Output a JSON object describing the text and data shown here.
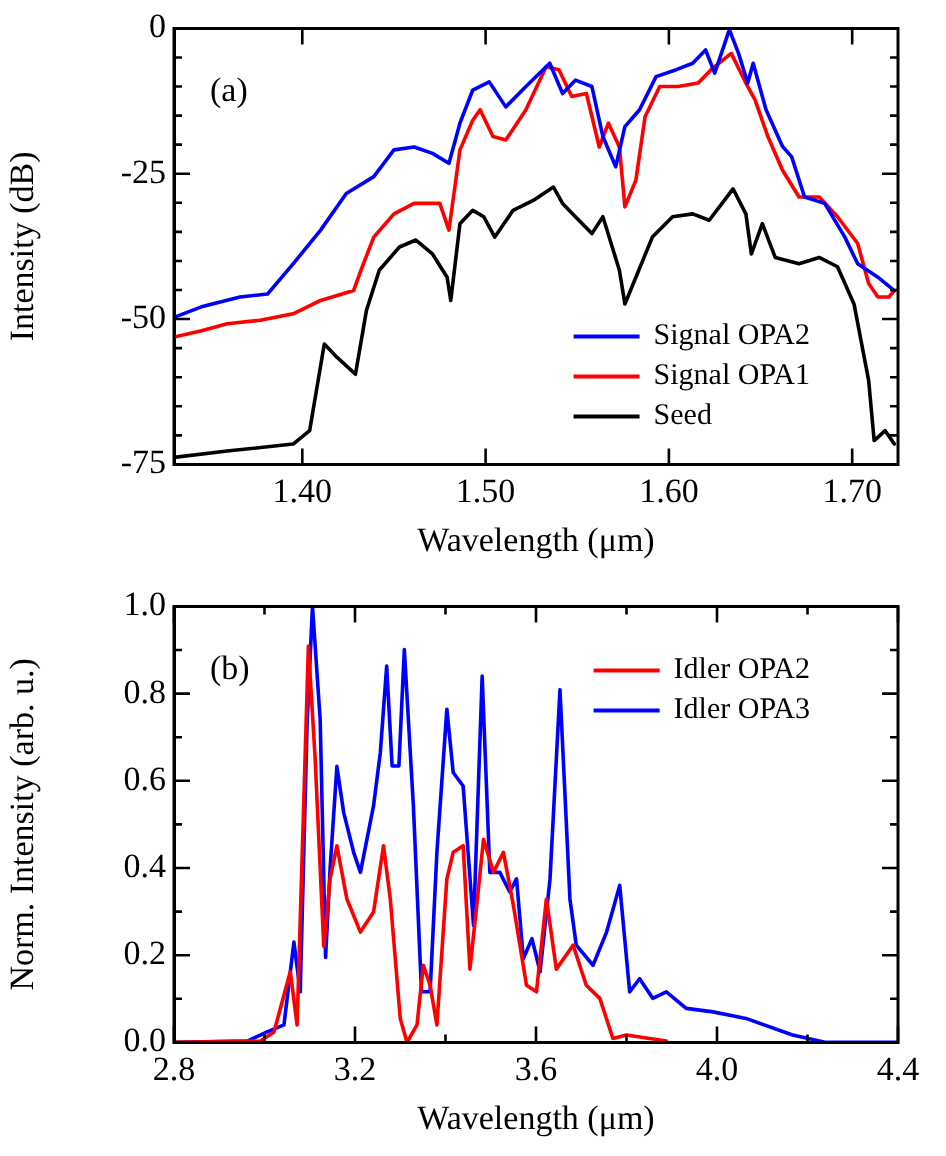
{
  "chart_data": [
    {
      "type": "line",
      "xlabel": "Wavelength (μm)",
      "ylabel": "Intensity (dB)",
      "annotations": [
        "(a)"
      ],
      "xlim": [
        1.33,
        1.725
      ],
      "xticks": [
        {
          "value": 1.4,
          "label": "1.40"
        },
        {
          "value": 1.5,
          "label": "1.50"
        },
        {
          "value": 1.6,
          "label": "1.60"
        },
        {
          "value": 1.7,
          "label": "1.70"
        }
      ],
      "ylim": [
        -75,
        0
      ],
      "yticks": [
        -75,
        {
          "value": -70,
          "label": null
        },
        {
          "value": -65,
          "label": null
        },
        {
          "value": -60,
          "label": null
        },
        {
          "value": -55,
          "label": null
        },
        -50,
        {
          "value": -45,
          "label": null
        },
        {
          "value": -40,
          "label": null
        },
        {
          "value": -35,
          "label": null
        },
        {
          "value": -30,
          "label": null
        },
        -25,
        {
          "value": -20,
          "label": null
        },
        {
          "value": -15,
          "label": null
        },
        {
          "value": -10,
          "label": null
        },
        {
          "value": -5,
          "label": null
        },
        0
      ],
      "grid": false,
      "legend": "bottom right",
      "marker": "none",
      "line_style": "solid",
      "series": [
        {
          "name": "Signal OPA2",
          "color": "#0000ff",
          "x": [
            1.33,
            1.345,
            1.366,
            1.381,
            1.395,
            1.41,
            1.424,
            1.439,
            1.45,
            1.461,
            1.471,
            1.48,
            1.486,
            1.493,
            1.502,
            1.511,
            1.522,
            1.535,
            1.542,
            1.549,
            1.558,
            1.564,
            1.571,
            1.576,
            1.584,
            1.593,
            1.604,
            1.613,
            1.62,
            1.625,
            1.633,
            1.638,
            1.643,
            1.646,
            1.653,
            1.662,
            1.667,
            1.674,
            1.685,
            1.696,
            1.703,
            1.714,
            1.723
          ],
          "values": [
            -49.7,
            -47.9,
            -46.2,
            -45.7,
            -40.5,
            -34.7,
            -28.4,
            -25.5,
            -20.9,
            -20.4,
            -21.5,
            -23.2,
            -16.3,
            -10.6,
            -9.2,
            -13.5,
            -10.0,
            -6.0,
            -11.2,
            -8.9,
            -10.0,
            -18.6,
            -23.8,
            -16.9,
            -14.0,
            -8.3,
            -7.1,
            -6.0,
            -3.7,
            -7.7,
            -0.2,
            -4.3,
            -9.4,
            -6.0,
            -14.0,
            -20.3,
            -22.1,
            -29.0,
            -30.1,
            -35.9,
            -40.5,
            -42.8,
            -45.1
          ]
        },
        {
          "name": "Signal OPA1",
          "color": "#ff0000",
          "x": [
            1.33,
            1.345,
            1.359,
            1.377,
            1.395,
            1.41,
            1.428,
            1.432,
            1.439,
            1.45,
            1.461,
            1.475,
            1.48,
            1.486,
            1.493,
            1.497,
            1.504,
            1.511,
            1.522,
            1.533,
            1.54,
            1.547,
            1.555,
            1.562,
            1.567,
            1.573,
            1.576,
            1.582,
            1.587,
            1.595,
            1.605,
            1.616,
            1.623,
            1.634,
            1.642,
            1.647,
            1.654,
            1.662,
            1.671,
            1.682,
            1.692,
            1.703,
            1.709,
            1.714,
            1.72,
            1.723
          ],
          "values": [
            -53.1,
            -52.0,
            -50.8,
            -50.2,
            -49.1,
            -46.8,
            -45.1,
            -41.6,
            -35.9,
            -31.9,
            -30.1,
            -30.1,
            -34.7,
            -20.9,
            -15.8,
            -14.0,
            -18.6,
            -19.2,
            -14.0,
            -6.6,
            -7.1,
            -11.7,
            -11.2,
            -20.4,
            -16.3,
            -20.4,
            -30.7,
            -26.1,
            -15.2,
            -10.0,
            -10.0,
            -9.4,
            -7.1,
            -4.3,
            -9.4,
            -12.3,
            -18.6,
            -24.4,
            -29.0,
            -29.0,
            -32.4,
            -37.0,
            -43.9,
            -46.2,
            -46.2,
            -45.1
          ]
        },
        {
          "name": "Seed",
          "color": "#000000",
          "x": [
            1.33,
            1.359,
            1.395,
            1.404,
            1.412,
            1.419,
            1.429,
            1.435,
            1.442,
            1.453,
            1.462,
            1.471,
            1.479,
            1.481,
            1.486,
            1.493,
            1.499,
            1.505,
            1.515,
            1.526,
            1.537,
            1.542,
            1.549,
            1.558,
            1.564,
            1.573,
            1.576,
            1.582,
            1.591,
            1.602,
            1.613,
            1.622,
            1.629,
            1.635,
            1.642,
            1.645,
            1.651,
            1.658,
            1.671,
            1.682,
            1.692,
            1.701,
            1.709,
            1.712,
            1.718,
            1.723
          ],
          "values": [
            -73.8,
            -72.7,
            -71.5,
            -69.2,
            -54.3,
            -56.6,
            -59.5,
            -48.5,
            -41.6,
            -37.6,
            -36.4,
            -38.8,
            -42.8,
            -46.8,
            -33.6,
            -31.3,
            -32.4,
            -35.9,
            -31.3,
            -29.6,
            -27.3,
            -30.1,
            -32.4,
            -35.3,
            -32.4,
            -41.6,
            -47.4,
            -42.8,
            -35.9,
            -32.4,
            -31.9,
            -33.0,
            -30.1,
            -27.6,
            -31.9,
            -38.8,
            -33.6,
            -39.4,
            -40.5,
            -39.4,
            -41.0,
            -47.4,
            -60.6,
            -70.9,
            -69.2,
            -71.5
          ]
        }
      ]
    },
    {
      "type": "line",
      "xlabel": "Wavelength (μm)",
      "ylabel": "Norm. Intensity (arb. u.)",
      "annotations": [
        "(b)"
      ],
      "xlim": [
        2.8,
        4.4
      ],
      "xticks": [
        2.8,
        {
          "value": 3.0,
          "label": null
        },
        3.2,
        {
          "value": 3.4,
          "label": null
        },
        3.6,
        {
          "value": 3.8,
          "label": null
        },
        {
          "value": 4.0,
          "label": "4.0"
        },
        {
          "value": 4.2,
          "label": null
        },
        4.4
      ],
      "ylim": [
        0,
        1
      ],
      "yticks": [
        {
          "value": 0,
          "label": "0.0"
        },
        {
          "value": 0.1,
          "label": null
        },
        0.2,
        {
          "value": 0.3,
          "label": null
        },
        0.4,
        {
          "value": 0.5,
          "label": null
        },
        0.6,
        {
          "value": 0.7,
          "label": null
        },
        0.8,
        {
          "value": 0.9,
          "label": null
        },
        {
          "value": 1,
          "label": "1.0"
        }
      ],
      "grid": false,
      "legend": "top right",
      "marker": "none",
      "line_style": "solid",
      "series": [
        {
          "name": "Idler OPA2",
          "color": "#ff0000",
          "x": [
            2.8,
            2.991,
            3.021,
            3.057,
            3.072,
            3.087,
            3.097,
            3.112,
            3.131,
            3.145,
            3.16,
            3.182,
            3.212,
            3.241,
            3.263,
            3.278,
            3.3,
            3.315,
            3.337,
            3.351,
            3.366,
            3.381,
            3.403,
            3.417,
            3.439,
            3.454,
            3.469,
            3.484,
            3.506,
            3.528,
            3.55,
            3.579,
            3.601,
            3.623,
            3.645,
            3.682,
            3.711,
            3.741,
            3.77,
            3.8,
            3.888
          ],
          "values": [
            0,
            0.003,
            0.024,
            0.162,
            0.04,
            0.558,
            0.909,
            0.649,
            0.22,
            0.375,
            0.451,
            0.329,
            0.253,
            0.299,
            0.451,
            0.329,
            0.055,
            0,
            0.04,
            0.177,
            0.131,
            0.04,
            0.375,
            0.436,
            0.451,
            0.168,
            0.314,
            0.466,
            0.39,
            0.436,
            0.314,
            0.131,
            0.116,
            0.329,
            0.168,
            0.223,
            0.131,
            0.101,
            0.009,
            0.017,
            0.003
          ]
        },
        {
          "name": "Idler OPA3",
          "color": "#0000ff",
          "x": [
            2.8,
            2.962,
            3.006,
            3.043,
            3.065,
            3.079,
            3.094,
            3.106,
            3.123,
            3.135,
            3.145,
            3.16,
            3.175,
            3.197,
            3.212,
            3.241,
            3.256,
            3.27,
            3.282,
            3.297,
            3.309,
            3.329,
            3.347,
            3.366,
            3.381,
            3.403,
            3.417,
            3.439,
            3.462,
            3.481,
            3.498,
            3.52,
            3.542,
            3.557,
            3.572,
            3.591,
            3.609,
            3.631,
            3.653,
            3.675,
            3.689,
            3.726,
            3.756,
            3.785,
            3.807,
            3.829,
            3.858,
            3.888,
            3.932,
            3.991,
            4.064,
            4.167,
            4.241,
            4.4
          ],
          "values": [
            0,
            0.003,
            0.024,
            0.04,
            0.23,
            0.116,
            0.726,
            1.0,
            0.741,
            0.195,
            0.399,
            0.633,
            0.527,
            0.436,
            0.39,
            0.543,
            0.665,
            0.863,
            0.634,
            0.634,
            0.901,
            0.543,
            0.116,
            0.116,
            0.436,
            0.764,
            0.619,
            0.588,
            0.268,
            0.84,
            0.39,
            0.39,
            0.345,
            0.375,
            0.192,
            0.238,
            0.162,
            0.375,
            0.809,
            0.329,
            0.223,
            0.177,
            0.253,
            0.36,
            0.116,
            0.146,
            0.101,
            0.116,
            0.078,
            0.07,
            0.055,
            0.017,
            0,
            0
          ]
        }
      ]
    }
  ]
}
